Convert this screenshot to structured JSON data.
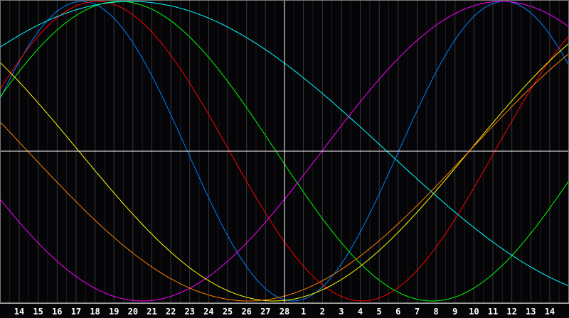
{
  "chart_data": {
    "type": "line",
    "x_tick_labels": [
      "14",
      "15",
      "16",
      "17",
      "18",
      "19",
      "20",
      "21",
      "22",
      "23",
      "24",
      "25",
      "26",
      "27",
      "28",
      "1",
      "2",
      "3",
      "4",
      "5",
      "6",
      "7",
      "8",
      "9",
      "10",
      "11",
      "12",
      "13",
      "14"
    ],
    "marked_day": "28",
    "ylim": [
      -1,
      1
    ],
    "grid": true,
    "series": [
      {
        "color": "#0080ff",
        "period_days": 22.3,
        "peak_at_tick_index": 3.3
      },
      {
        "color": "#ff0000",
        "period_days": 28,
        "peak_at_tick_index": 4.1
      },
      {
        "color": "#00ff00",
        "period_days": 33,
        "peak_at_tick_index": 5.3
      },
      {
        "color": "#00ffff",
        "period_days": 54,
        "peak_at_tick_index": 5.9
      },
      {
        "color": "#ff00ff",
        "period_days": 37.9,
        "peak_at_tick_index": 25.45
      },
      {
        "color": "#ffff00",
        "period_days": 41.2,
        "peak_at_tick_index": 34.05
      },
      {
        "color": "#ff8000",
        "period_days": 46.6,
        "peak_at_tick_index": 35.4
      }
    ]
  }
}
